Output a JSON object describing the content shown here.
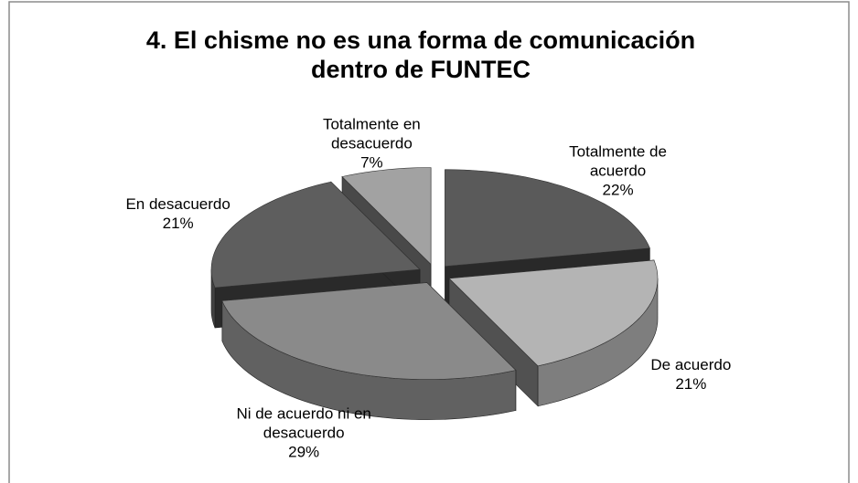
{
  "chart_data": {
    "type": "pie3d",
    "title": "4. El chisme no es una forma de comunicación dentro de FUNTEC",
    "categories": [
      "Totalmente de acuerdo",
      "De acuerdo",
      "Ni de acuerdo ni en desacuerdo",
      "En desacuerdo",
      "Totalmente en desacuerdo"
    ],
    "values": [
      22,
      21,
      29,
      21,
      7
    ],
    "value_labels": [
      "22%",
      "21%",
      "29%",
      "21%",
      "7%"
    ],
    "colors": [
      "#5a5a5a",
      "#b4b4b4",
      "#8a8a8a",
      "#5e5e5e",
      "#a2a2a2"
    ]
  }
}
